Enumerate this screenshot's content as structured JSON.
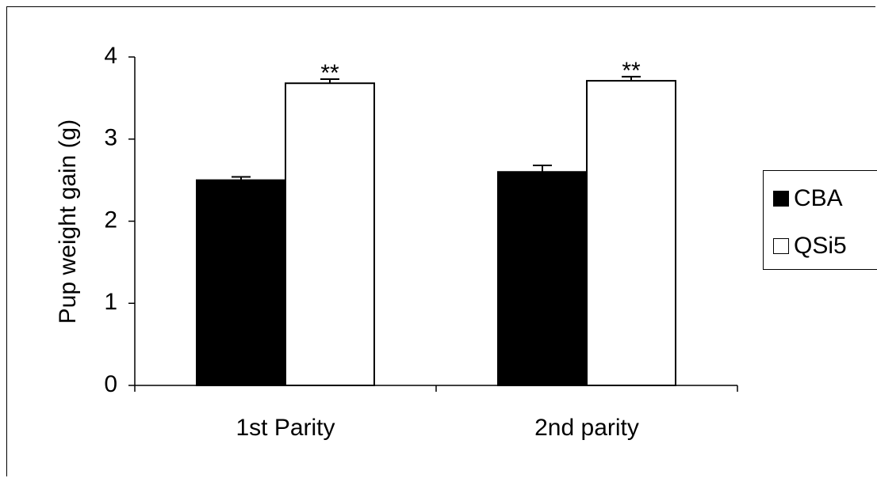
{
  "chart_data": {
    "type": "bar",
    "categories": [
      "1st Parity",
      "2nd parity"
    ],
    "series": [
      {
        "name": "CBA",
        "values": [
          2.5,
          2.6
        ],
        "errors": [
          0.04,
          0.08
        ],
        "color": "#000000"
      },
      {
        "name": "QSi5",
        "values": [
          3.68,
          3.71
        ],
        "errors": [
          0.05,
          0.05
        ],
        "color": "#ffffff"
      }
    ],
    "annotations": [
      "**",
      "**"
    ],
    "title": "",
    "xlabel": "",
    "ylabel": "Pup weight gain (g)",
    "ylim": [
      0,
      4
    ],
    "yticks": [
      "0",
      "1",
      "2",
      "3",
      "4"
    ],
    "grid": false,
    "legend_position": "right"
  }
}
